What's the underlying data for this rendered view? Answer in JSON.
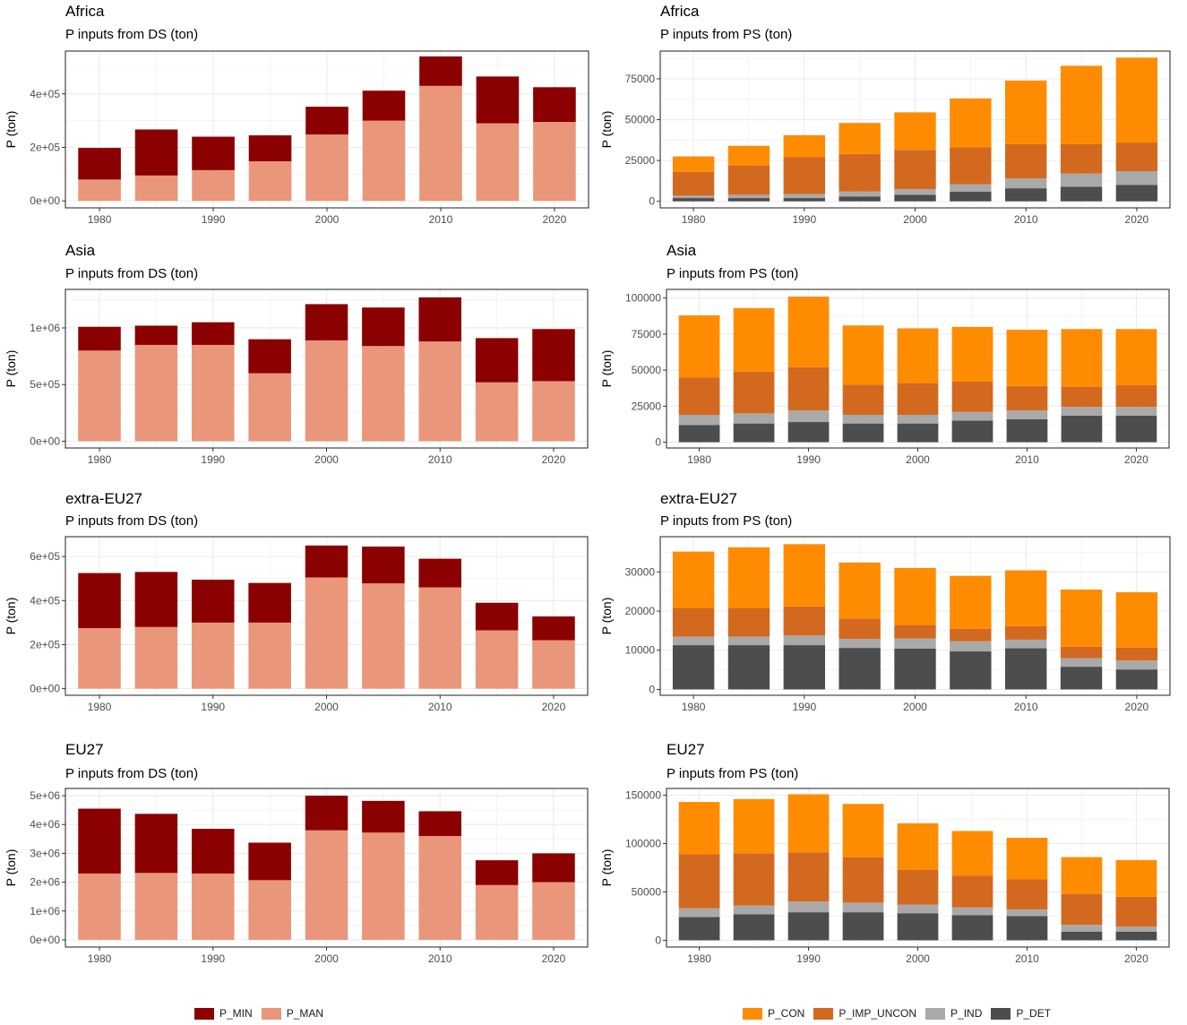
{
  "colors": {
    "P_MIN": "#8b0000",
    "P_MAN": "#e9967a",
    "P_CON": "#ff8c00",
    "P_IMP_UNCON": "#d2691e",
    "P_IND": "#a9a9a9",
    "P_DET": "#4d4d4d"
  },
  "legend_ds": {
    "items": [
      {
        "key": "P_MIN",
        "label": "P_MIN"
      },
      {
        "key": "P_MAN",
        "label": "P_MAN"
      }
    ]
  },
  "legend_ps": {
    "items": [
      {
        "key": "P_CON",
        "label": "P_CON"
      },
      {
        "key": "P_IMP_UNCON",
        "label": "P_IMP_UNCON"
      },
      {
        "key": "P_IND",
        "label": "P_IND"
      },
      {
        "key": "P_DET",
        "label": "P_DET"
      }
    ]
  },
  "chart_data": [
    {
      "type": "bar",
      "stacked": true,
      "title": "Africa",
      "subtitle": "P inputs from DS (ton)",
      "ylabel": "P (ton)",
      "x": [
        1980,
        1985,
        1990,
        1995,
        2000,
        2005,
        2010,
        2015,
        2020
      ],
      "xticks": [
        1980,
        1990,
        2000,
        2010,
        2020
      ],
      "ylim": [
        -26000,
        560000
      ],
      "yticks": [
        0,
        200000,
        400000
      ],
      "yticklabels": [
        "0e+00",
        "2e+05",
        "4e+05"
      ],
      "series": [
        {
          "name": "P_MAN",
          "values": [
            80000,
            95000,
            115000,
            148000,
            248000,
            300000,
            430000,
            290000,
            295000
          ]
        },
        {
          "name": "P_MIN",
          "values": [
            118000,
            172000,
            125000,
            97000,
            104000,
            112000,
            110000,
            175000,
            130000
          ]
        }
      ]
    },
    {
      "type": "bar",
      "stacked": true,
      "title": "Africa",
      "subtitle": "P inputs from PS (ton)",
      "ylabel": "P (ton)",
      "x": [
        1980,
        1985,
        1990,
        1995,
        2000,
        2005,
        2010,
        2015,
        2020
      ],
      "xticks": [
        1980,
        1990,
        2000,
        2010,
        2020
      ],
      "ylim": [
        -4000,
        92000
      ],
      "yticks": [
        0,
        25000,
        50000,
        75000
      ],
      "yticklabels": [
        "0",
        "25000",
        "50000",
        "75000"
      ],
      "series": [
        {
          "name": "P_DET",
          "values": [
            2000,
            2000,
            2000,
            3000,
            4000,
            6000,
            8000,
            9000,
            10000
          ]
        },
        {
          "name": "P_IND",
          "values": [
            1500,
            2000,
            2500,
            3000,
            3500,
            4500,
            6000,
            8000,
            8500
          ]
        },
        {
          "name": "P_IMP_UNCON",
          "values": [
            14500,
            18000,
            22500,
            23000,
            24000,
            22500,
            21000,
            18000,
            17500
          ]
        },
        {
          "name": "P_CON",
          "values": [
            9500,
            12000,
            13500,
            19000,
            23000,
            30000,
            39000,
            48000,
            52000
          ]
        }
      ]
    },
    {
      "type": "bar",
      "stacked": true,
      "title": "Asia",
      "subtitle": "P inputs from DS (ton)",
      "ylabel": "P (ton)",
      "x": [
        1980,
        1985,
        1990,
        1995,
        2000,
        2005,
        2010,
        2015,
        2020
      ],
      "xticks": [
        1980,
        1990,
        2000,
        2010,
        2020
      ],
      "ylim": [
        -60000,
        1340000
      ],
      "yticks": [
        0,
        500000,
        1000000
      ],
      "yticklabels": [
        "0e+00",
        "5e+05",
        "1e+06"
      ],
      "series": [
        {
          "name": "P_MAN",
          "values": [
            800000,
            850000,
            850000,
            600000,
            890000,
            840000,
            880000,
            520000,
            530000
          ]
        },
        {
          "name": "P_MIN",
          "values": [
            210000,
            170000,
            200000,
            300000,
            320000,
            340000,
            390000,
            390000,
            460000
          ]
        }
      ]
    },
    {
      "type": "bar",
      "stacked": true,
      "title": "Asia",
      "subtitle": "P inputs from PS (ton)",
      "ylabel": "P (ton)",
      "x": [
        1980,
        1985,
        1990,
        1995,
        2000,
        2005,
        2010,
        2015,
        2020
      ],
      "xticks": [
        1980,
        1990,
        2000,
        2010,
        2020
      ],
      "ylim": [
        -4000,
        106000
      ],
      "yticks": [
        0,
        25000,
        50000,
        75000,
        100000
      ],
      "yticklabels": [
        "0",
        "25000",
        "50000",
        "75000",
        "100000"
      ],
      "series": [
        {
          "name": "P_DET",
          "values": [
            12000,
            13000,
            14000,
            13000,
            13000,
            15000,
            16000,
            18500,
            18500
          ]
        },
        {
          "name": "P_IND",
          "values": [
            7000,
            7000,
            8000,
            6000,
            6000,
            6000,
            6000,
            6000,
            6000
          ]
        },
        {
          "name": "P_IMP_UNCON",
          "values": [
            26000,
            29000,
            30000,
            21000,
            22000,
            21000,
            17000,
            14000,
            15000
          ]
        },
        {
          "name": "P_CON",
          "values": [
            43000,
            44000,
            49000,
            41000,
            38000,
            38000,
            39000,
            40000,
            39000
          ]
        }
      ]
    },
    {
      "type": "bar",
      "stacked": true,
      "title": "extra-EU27",
      "subtitle": "P inputs from DS (ton)",
      "ylabel": "P (ton)",
      "x": [
        1980,
        1985,
        1990,
        1995,
        2000,
        2005,
        2010,
        2015,
        2020
      ],
      "xticks": [
        1980,
        1990,
        2000,
        2010,
        2020
      ],
      "ylim": [
        -30000,
        690000
      ],
      "yticks": [
        0,
        200000,
        400000,
        600000
      ],
      "yticklabels": [
        "0e+00",
        "2e+05",
        "4e+05",
        "6e+05"
      ],
      "series": [
        {
          "name": "P_MAN",
          "values": [
            275000,
            280000,
            300000,
            300000,
            505000,
            478000,
            460000,
            265000,
            220000
          ]
        },
        {
          "name": "P_MIN",
          "values": [
            250000,
            250000,
            195000,
            180000,
            145000,
            167000,
            130000,
            125000,
            108000
          ]
        }
      ]
    },
    {
      "type": "bar",
      "stacked": true,
      "title": "extra-EU27",
      "subtitle": "P inputs from PS (ton)",
      "ylabel": "P (ton)",
      "x": [
        1980,
        1985,
        1990,
        1995,
        2000,
        2005,
        2010,
        2015,
        2020
      ],
      "xticks": [
        1980,
        1990,
        2000,
        2010,
        2020
      ],
      "ylim": [
        -1500,
        39000
      ],
      "yticks": [
        0,
        10000,
        20000,
        30000
      ],
      "yticklabels": [
        "0",
        "10000",
        "20000",
        "30000"
      ],
      "series": [
        {
          "name": "P_DET",
          "values": [
            11300,
            11300,
            11300,
            10600,
            10400,
            9700,
            10500,
            5800,
            5100
          ]
        },
        {
          "name": "P_IND",
          "values": [
            2200,
            2200,
            2500,
            2300,
            2600,
            2600,
            2200,
            2200,
            2300
          ]
        },
        {
          "name": "P_IMP_UNCON",
          "values": [
            7300,
            7300,
            7400,
            5200,
            3500,
            3200,
            3500,
            2900,
            3300
          ]
        },
        {
          "name": "P_CON",
          "values": [
            14400,
            15500,
            15900,
            14300,
            14500,
            13500,
            14200,
            14600,
            14100
          ]
        }
      ]
    },
    {
      "type": "bar",
      "stacked": true,
      "title": "EU27",
      "subtitle": "P inputs from DS (ton)",
      "ylabel": "P (ton)",
      "x": [
        1980,
        1985,
        1990,
        1995,
        2000,
        2005,
        2010,
        2015,
        2020
      ],
      "xticks": [
        1980,
        1990,
        2000,
        2010,
        2020
      ],
      "ylim": [
        -250000,
        5250000
      ],
      "yticks": [
        0,
        1000000,
        2000000,
        3000000,
        4000000,
        5000000
      ],
      "yticklabels": [
        "0e+00",
        "1e+06",
        "2e+06",
        "3e+06",
        "4e+06",
        "5e+06"
      ],
      "series": [
        {
          "name": "P_MAN",
          "values": [
            2300000,
            2320000,
            2300000,
            2070000,
            3800000,
            3720000,
            3600000,
            1900000,
            2000000
          ]
        },
        {
          "name": "P_MIN",
          "values": [
            2250000,
            2050000,
            1550000,
            1300000,
            1200000,
            1100000,
            860000,
            860000,
            1000000
          ]
        }
      ]
    },
    {
      "type": "bar",
      "stacked": true,
      "title": "EU27",
      "subtitle": "P inputs from PS (ton)",
      "ylabel": "P (ton)",
      "x": [
        1980,
        1985,
        1990,
        1995,
        2000,
        2005,
        2010,
        2015,
        2020
      ],
      "xticks": [
        1980,
        1990,
        2000,
        2010,
        2020
      ],
      "ylim": [
        -7000,
        157000
      ],
      "yticks": [
        0,
        50000,
        100000,
        150000
      ],
      "yticklabels": [
        "0",
        "50000",
        "100000",
        "150000"
      ],
      "series": [
        {
          "name": "P_DET",
          "values": [
            24000,
            27000,
            29000,
            29000,
            28000,
            26000,
            25000,
            9000,
            9000
          ]
        },
        {
          "name": "P_IND",
          "values": [
            9000,
            9000,
            11000,
            10000,
            9000,
            8000,
            7000,
            7000,
            5000
          ]
        },
        {
          "name": "P_IMP_UNCON",
          "values": [
            56000,
            54000,
            51000,
            47000,
            36000,
            33000,
            31000,
            32000,
            31000
          ]
        },
        {
          "name": "P_CON",
          "values": [
            54000,
            56000,
            60000,
            55000,
            48000,
            46000,
            43000,
            38000,
            38000
          ]
        }
      ]
    }
  ]
}
